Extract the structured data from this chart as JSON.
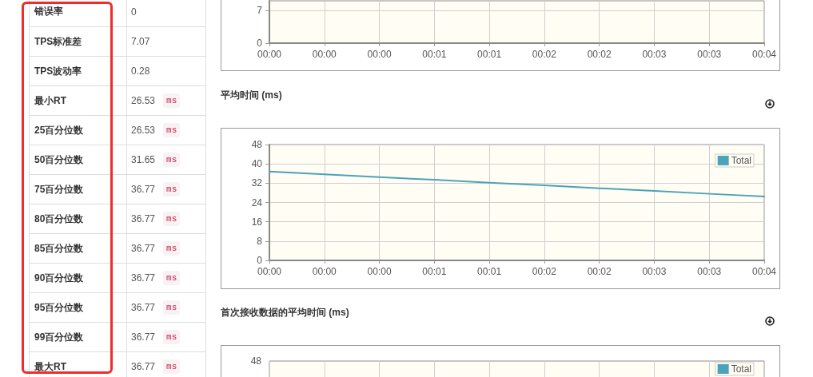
{
  "chart_data": [
    {
      "type": "other",
      "categories": [
        "错误率",
        "TPS标准差",
        "TPS波动率",
        "最小RT",
        "25百分位数",
        "50百分位数",
        "75百分位数",
        "80百分位数",
        "85百分位数",
        "90百分位数",
        "95百分位数",
        "99百分位数",
        "最大RT"
      ],
      "value_labels": [
        "0",
        "7.07",
        "0.28",
        "26.53 ms",
        "26.53 ms",
        "31.65 ms",
        "36.77 ms",
        "36.77 ms",
        "36.77 ms",
        "36.77 ms",
        "36.77 ms",
        "36.77 ms",
        "36.77 ms"
      ]
    },
    {
      "type": "line",
      "categories": [
        "00:00",
        "00:00",
        "00:00",
        "00:01",
        "00:01",
        "00:02",
        "00:02",
        "00:03",
        "00:03",
        "00:04"
      ],
      "ylim": [
        0,
        9
      ],
      "yticks": [
        0,
        7
      ],
      "grid": true
    },
    {
      "type": "line",
      "title": "平均时间 (ms)",
      "categories": [
        "00:00",
        "00:00",
        "00:00",
        "00:01",
        "00:01",
        "00:02",
        "00:02",
        "00:03",
        "00:03",
        "00:04"
      ],
      "ylim": [
        0,
        48
      ],
      "yticks": [
        0,
        8,
        16,
        24,
        32,
        40,
        48
      ],
      "grid": true,
      "legend": "top right",
      "marker": "none",
      "series": [
        {
          "name": "Total",
          "color": "#4ba3b9",
          "values": [
            36.8,
            35.7,
            34.5,
            33.4,
            32.2,
            31.1,
            29.9,
            28.8,
            27.6,
            26.5
          ]
        }
      ]
    },
    {
      "type": "other",
      "title": "首次接收数据的平均时间 (ms)",
      "annotations": [
        "48"
      ],
      "categories": [
        null,
        null,
        null,
        null,
        null,
        null,
        null,
        null,
        null,
        null
      ],
      "legend": "top right",
      "series": [
        {
          "name": "Total",
          "color": "#4ba3b9",
          "values": [
            null,
            null,
            null,
            null,
            null,
            null,
            null,
            null,
            null,
            null
          ]
        }
      ]
    }
  ]
}
